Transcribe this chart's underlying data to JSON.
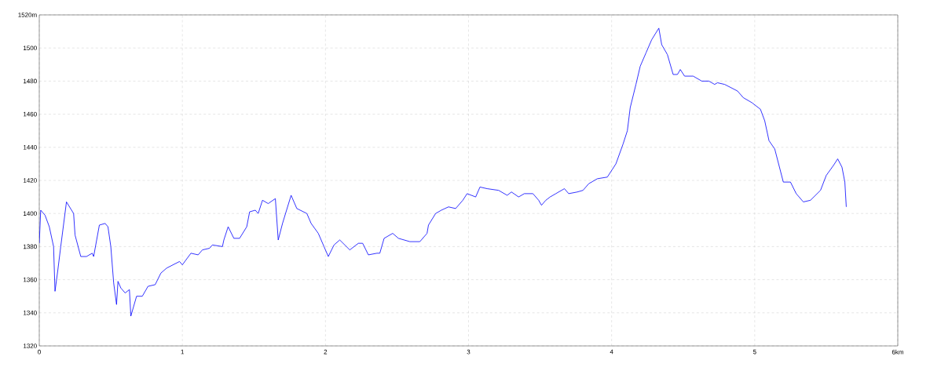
{
  "chart_data": {
    "type": "line",
    "x": [
      0,
      0.01,
      0.04,
      0.07,
      0.1,
      0.11,
      0.13,
      0.15,
      0.19,
      0.24,
      0.25,
      0.29,
      0.33,
      0.37,
      0.38,
      0.42,
      0.46,
      0.48,
      0.5,
      0.52,
      0.54,
      0.55,
      0.57,
      0.6,
      0.63,
      0.64,
      0.68,
      0.72,
      0.76,
      0.81,
      0.85,
      0.89,
      0.98,
      1.0,
      1.06,
      1.11,
      1.14,
      1.19,
      1.21,
      1.28,
      1.29,
      1.32,
      1.36,
      1.4,
      1.45,
      1.47,
      1.51,
      1.53,
      1.56,
      1.6,
      1.65,
      1.67,
      1.7,
      1.76,
      1.8,
      1.87,
      1.9,
      1.95,
      1.99,
      2.02,
      2.06,
      2.1,
      2.17,
      2.23,
      2.26,
      2.3,
      2.36,
      2.38,
      2.41,
      2.47,
      2.51,
      2.59,
      2.66,
      2.71,
      2.72,
      2.77,
      2.81,
      2.86,
      2.91,
      2.96,
      2.99,
      3.05,
      3.08,
      3.13,
      3.21,
      3.27,
      3.3,
      3.35,
      3.39,
      3.45,
      3.49,
      3.51,
      3.54,
      3.57,
      3.61,
      3.67,
      3.7,
      3.76,
      3.8,
      3.84,
      3.9,
      3.97,
      4.03,
      4.08,
      4.11,
      4.13,
      4.17,
      4.2,
      4.24,
      4.28,
      4.33,
      4.35,
      4.39,
      4.43,
      4.46,
      4.48,
      4.51,
      4.57,
      4.63,
      4.68,
      4.72,
      4.74,
      4.79,
      4.88,
      4.92,
      4.98,
      5.04,
      5.07,
      5.1,
      5.14,
      5.2,
      5.25,
      5.29,
      5.34,
      5.39,
      5.46,
      5.5,
      5.55,
      5.58,
      5.61,
      5.63,
      5.64
    ],
    "series": [
      {
        "color": "#0000ff",
        "values": [
          1382,
          1402,
          1399,
          1392,
          1380,
          1353,
          1366,
          1380,
          1407,
          1400,
          1387,
          1374,
          1374,
          1376,
          1374,
          1393,
          1394,
          1392,
          1380,
          1358,
          1345,
          1359,
          1355,
          1352,
          1354,
          1338,
          1350,
          1350,
          1356,
          1357,
          1364,
          1367,
          1371,
          1369,
          1376,
          1375,
          1378,
          1379,
          1381,
          1380,
          1384,
          1392,
          1385,
          1385,
          1392,
          1401,
          1402,
          1400,
          1408,
          1406,
          1409,
          1384,
          1394,
          1411,
          1403,
          1400,
          1394,
          1388,
          1380,
          1374,
          1381,
          1384,
          1378,
          1382,
          1382,
          1375,
          1376,
          1376,
          1385,
          1388,
          1385,
          1383,
          1383,
          1388,
          1393,
          1400,
          1402,
          1404,
          1403,
          1408,
          1412,
          1410,
          1416,
          1415,
          1414,
          1411,
          1413,
          1410,
          1412,
          1412,
          1408,
          1405,
          1408,
          1410,
          1412,
          1415,
          1412,
          1413,
          1414,
          1418,
          1421,
          1422,
          1430,
          1442,
          1450,
          1464,
          1478,
          1489,
          1497,
          1505,
          1512,
          1502,
          1496,
          1484,
          1484,
          1487,
          1483,
          1483,
          1480,
          1480,
          1478,
          1479,
          1478,
          1474,
          1470,
          1467,
          1463,
          1456,
          1444,
          1439,
          1419,
          1419,
          1412,
          1407,
          1408,
          1414,
          1423,
          1429,
          1433,
          1428,
          1419,
          1404
        ]
      }
    ],
    "xlim": [
      0,
      6
    ],
    "ylim": [
      1320,
      1520
    ],
    "xticks": [
      0,
      1,
      2,
      3,
      4,
      5,
      {
        "value": 6,
        "label": "6km"
      }
    ],
    "yticks": [
      1320,
      1340,
      1360,
      1380,
      1400,
      1420,
      1440,
      1460,
      1480,
      1500,
      {
        "value": 1520,
        "label": "1520m"
      }
    ],
    "grid": true,
    "line_style": "solid",
    "marker": "none"
  }
}
